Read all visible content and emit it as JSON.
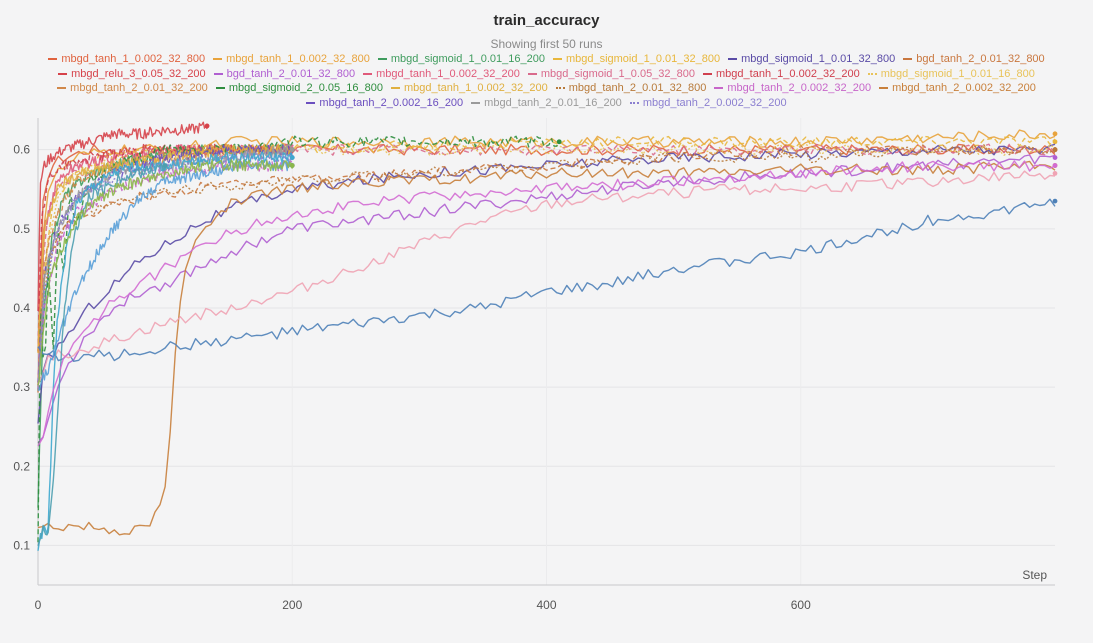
{
  "chart_data": {
    "type": "line",
    "title": "train_accuracy",
    "subtitle": "Showing first 50 runs",
    "xlabel": "Step",
    "ylabel": "",
    "xlim": [
      0,
      800
    ],
    "ylim": [
      0.05,
      0.64
    ],
    "x_ticks": [
      0,
      200,
      400,
      600
    ],
    "y_ticks": [
      0.1,
      0.2,
      0.3,
      0.4,
      0.5,
      0.6
    ],
    "grid": true,
    "legend_position": "top",
    "series": [
      {
        "name": "mbgd_tanh_1_0.002_32_800",
        "color": "#e0633f",
        "dash": "solid",
        "x": [
          0,
          2,
          6,
          10,
          20,
          40,
          80,
          120,
          200,
          300,
          400,
          500,
          600,
          700,
          800
        ],
        "y": [
          0.34,
          0.5,
          0.56,
          0.58,
          0.59,
          0.6,
          0.6,
          0.6,
          0.6,
          0.6,
          0.6,
          0.6,
          0.6,
          0.6,
          0.6
        ]
      },
      {
        "name": "mbgd_tanh_1_0.002_32_800",
        "color": "#e8a33c",
        "dash": "solid",
        "x": [
          0,
          3,
          8,
          15,
          30,
          60,
          100,
          150,
          200,
          300,
          400,
          500,
          600,
          700,
          800
        ],
        "y": [
          0.3,
          0.48,
          0.55,
          0.57,
          0.59,
          0.6,
          0.6,
          0.61,
          0.61,
          0.61,
          0.61,
          0.61,
          0.61,
          0.615,
          0.62
        ]
      },
      {
        "name": "mbgd_sigmoid_1_0.01_16_200",
        "color": "#3f9c5e",
        "dash": "solid",
        "x": [
          0,
          4,
          10,
          20,
          40,
          80,
          120,
          160,
          200
        ],
        "y": [
          0.15,
          0.38,
          0.48,
          0.54,
          0.57,
          0.59,
          0.6,
          0.6,
          0.6
        ]
      },
      {
        "name": "mbgd_sigmoid_1_0.01_32_800",
        "color": "#e8b73c",
        "dash": "dashed",
        "x": [
          0,
          5,
          12,
          25,
          50,
          100,
          200,
          300,
          400,
          500,
          600,
          700,
          800
        ],
        "y": [
          0.3,
          0.45,
          0.53,
          0.57,
          0.59,
          0.6,
          0.6,
          0.605,
          0.61,
          0.61,
          0.61,
          0.61,
          0.61
        ]
      },
      {
        "name": "mbgd_sigmoid_1_0.01_32_800",
        "color": "#5a4ba6",
        "dash": "solid",
        "x": [
          0,
          5,
          10,
          20,
          40,
          60,
          80,
          100,
          130,
          160,
          200,
          300,
          400,
          500,
          600,
          700,
          800
        ],
        "y": [
          0.25,
          0.33,
          0.34,
          0.36,
          0.4,
          0.43,
          0.46,
          0.48,
          0.51,
          0.53,
          0.55,
          0.57,
          0.58,
          0.59,
          0.595,
          0.6,
          0.6
        ]
      },
      {
        "name": "bgd_tanh_2_0.01_32_800",
        "color": "#c9773f",
        "dash": "dashed",
        "x": [
          0,
          5,
          20,
          40,
          80,
          120,
          160,
          200,
          300,
          400,
          500,
          600,
          700,
          800
        ],
        "y": [
          0.3,
          0.46,
          0.5,
          0.52,
          0.54,
          0.55,
          0.56,
          0.56,
          0.57,
          0.58,
          0.59,
          0.6,
          0.6,
          0.6
        ]
      },
      {
        "name": "mbgd_relu_3_0.05_32_200",
        "color": "#d6424a",
        "dash": "solid",
        "x": [
          0,
          2,
          5,
          10,
          20,
          40,
          60,
          80,
          100,
          120,
          133
        ],
        "y": [
          0.4,
          0.56,
          0.58,
          0.59,
          0.6,
          0.61,
          0.62,
          0.62,
          0.625,
          0.625,
          0.63
        ]
      },
      {
        "name": "bgd_tanh_2_0.01_32_800",
        "color": "#b05fd1",
        "dash": "solid",
        "x": [
          0,
          5,
          10,
          20,
          40,
          60,
          80,
          100,
          150,
          200,
          300,
          400,
          500,
          600,
          700,
          800
        ],
        "y": [
          0.23,
          0.24,
          0.27,
          0.32,
          0.37,
          0.4,
          0.42,
          0.43,
          0.47,
          0.5,
          0.52,
          0.54,
          0.56,
          0.57,
          0.58,
          0.59
        ]
      },
      {
        "name": "mbgd_tanh_1_0.002_32_200",
        "color": "#e05a7a",
        "dash": "solid",
        "x": [
          0,
          5,
          15,
          30,
          60,
          100,
          150,
          200
        ],
        "y": [
          0.3,
          0.5,
          0.56,
          0.58,
          0.59,
          0.6,
          0.6,
          0.6
        ]
      },
      {
        "name": "mbgd_sigmoid_1_0.05_32_800",
        "color": "#d96a8c",
        "dash": "dashed",
        "x": [
          0,
          5,
          15,
          30,
          60,
          100,
          200,
          300,
          400,
          500,
          600,
          700,
          800
        ],
        "y": [
          0.3,
          0.5,
          0.55,
          0.57,
          0.58,
          0.59,
          0.6,
          0.6,
          0.6,
          0.6,
          0.6,
          0.6,
          0.6
        ]
      },
      {
        "name": "mbgd_tanh_1_0.002_32_200",
        "color": "#d0404e",
        "dash": "dashed",
        "x": [
          0,
          3,
          10,
          20,
          40,
          80,
          120,
          160,
          200
        ],
        "y": [
          0.35,
          0.52,
          0.57,
          0.58,
          0.59,
          0.6,
          0.6,
          0.6,
          0.6
        ]
      },
      {
        "name": "mbgd_sigmoid_1_0.01_16_800",
        "color": "#e8c35a",
        "dash": "dotted",
        "x": [
          0,
          5,
          15,
          30,
          60,
          120,
          200,
          300,
          400,
          500,
          600,
          700,
          800
        ],
        "y": [
          0.3,
          0.46,
          0.54,
          0.57,
          0.59,
          0.6,
          0.6,
          0.6,
          0.6,
          0.6,
          0.6,
          0.6,
          0.6
        ]
      },
      {
        "name": "mbgd_tanh_2_0.01_32_200",
        "color": "#d1884a",
        "dash": "dashed",
        "x": [
          0,
          5,
          15,
          30,
          60,
          100,
          150,
          200
        ],
        "y": [
          0.3,
          0.46,
          0.52,
          0.56,
          0.58,
          0.59,
          0.6,
          0.6
        ]
      },
      {
        "name": "mbgd_sigmoid_2_0.05_16_800",
        "color": "#2f8e3f",
        "dash": "dashed",
        "x": [
          0,
          2,
          5,
          8,
          12,
          16,
          20,
          25,
          30,
          40,
          60,
          100,
          150,
          200,
          300,
          400,
          410
        ],
        "y": [
          0.1,
          0.4,
          0.3,
          0.45,
          0.35,
          0.5,
          0.44,
          0.55,
          0.5,
          0.56,
          0.58,
          0.6,
          0.6,
          0.61,
          0.61,
          0.61,
          0.61
        ]
      },
      {
        "name": "mbgd_tanh_1_0.002_32_200",
        "color": "#e0b040",
        "dash": "solid",
        "x": [
          0,
          5,
          15,
          30,
          60,
          100,
          150,
          200
        ],
        "y": [
          0.35,
          0.5,
          0.55,
          0.57,
          0.58,
          0.59,
          0.6,
          0.6
        ]
      },
      {
        "name": "mbgd_tanh_2_0.01_32_800",
        "color": "#b87a3a",
        "dash": "dotted",
        "x": [
          0,
          5,
          20,
          40,
          80,
          120,
          200,
          300,
          400,
          500,
          600,
          700,
          800
        ],
        "y": [
          0.3,
          0.44,
          0.5,
          0.52,
          0.54,
          0.55,
          0.56,
          0.57,
          0.58,
          0.59,
          0.59,
          0.6,
          0.6
        ]
      },
      {
        "name": "mbgd_tanh_2_0.002_32_200",
        "color": "#c766c9",
        "dash": "dashed",
        "x": [
          0,
          5,
          15,
          30,
          60,
          100,
          150,
          200
        ],
        "y": [
          0.3,
          0.4,
          0.48,
          0.52,
          0.55,
          0.57,
          0.58,
          0.58
        ]
      },
      {
        "name": "mbgd_tanh_2_0.002_32_200",
        "color": "#c8803c",
        "dash": "solid",
        "x": [
          0,
          5,
          10,
          20,
          40,
          60,
          70,
          80,
          90,
          100,
          103,
          106,
          110,
          115,
          120,
          130,
          140,
          150,
          170,
          200,
          250,
          300,
          400,
          500,
          600,
          700,
          800
        ],
        "y": [
          0.12,
          0.125,
          0.125,
          0.125,
          0.125,
          0.12,
          0.12,
          0.12,
          0.13,
          0.17,
          0.22,
          0.3,
          0.38,
          0.44,
          0.47,
          0.5,
          0.52,
          0.53,
          0.54,
          0.55,
          0.56,
          0.56,
          0.57,
          0.57,
          0.575,
          0.575,
          0.58
        ]
      },
      {
        "name": "mbgd_tanh_2_0.002_16_200",
        "color": "#6b4fbf",
        "dash": "dashed",
        "x": [
          0,
          5,
          15,
          30,
          60,
          100,
          150,
          200
        ],
        "y": [
          0.3,
          0.44,
          0.5,
          0.54,
          0.57,
          0.59,
          0.6,
          0.6
        ]
      },
      {
        "name": "mbgd_tanh_2_0.01_16_200",
        "color": "#9a9a9a",
        "dash": "solid",
        "x": [
          0,
          5,
          15,
          30,
          60,
          100,
          150,
          200
        ],
        "y": [
          0.3,
          0.44,
          0.5,
          0.54,
          0.57,
          0.58,
          0.59,
          0.6
        ]
      },
      {
        "name": "mbgd_tanh_2_0.002_32_200",
        "color": "#8b7fd0",
        "dash": "dotted",
        "x": [
          0,
          5,
          15,
          30,
          60,
          100,
          150,
          200
        ],
        "y": [
          0.3,
          0.42,
          0.5,
          0.54,
          0.56,
          0.58,
          0.59,
          0.59
        ]
      },
      {
        "name": "",
        "color": "#4e81b8",
        "dash": "solid",
        "x": [
          0,
          5,
          10,
          20,
          30,
          40,
          60,
          80,
          100,
          150,
          200,
          250,
          300,
          350,
          400,
          450,
          500,
          550,
          600,
          650,
          700,
          750,
          800
        ],
        "y": [
          0.35,
          0.34,
          0.34,
          0.34,
          0.335,
          0.34,
          0.34,
          0.345,
          0.35,
          0.36,
          0.37,
          0.38,
          0.39,
          0.4,
          0.42,
          0.43,
          0.45,
          0.46,
          0.47,
          0.49,
          0.51,
          0.52,
          0.535
        ]
      },
      {
        "name": "",
        "color": "#f0a3b4",
        "dash": "solid",
        "x": [
          0,
          5,
          10,
          20,
          40,
          60,
          80,
          100,
          150,
          200,
          250,
          300,
          350,
          400,
          450,
          500,
          550,
          600,
          650,
          700,
          750,
          800
        ],
        "y": [
          0.3,
          0.33,
          0.34,
          0.34,
          0.35,
          0.36,
          0.37,
          0.38,
          0.4,
          0.42,
          0.45,
          0.48,
          0.51,
          0.53,
          0.54,
          0.545,
          0.55,
          0.55,
          0.555,
          0.56,
          0.565,
          0.57
        ]
      },
      {
        "name": "",
        "color": "#3ea8cf",
        "dash": "solid",
        "x": [
          0,
          5,
          8,
          10,
          12,
          15,
          20,
          25,
          30,
          40,
          50,
          60,
          80,
          100,
          150,
          200
        ],
        "y": [
          0.1,
          0.12,
          0.12,
          0.2,
          0.3,
          0.38,
          0.45,
          0.5,
          0.53,
          0.55,
          0.56,
          0.57,
          0.58,
          0.58,
          0.59,
          0.59
        ]
      },
      {
        "name": "",
        "color": "#5aa0d8",
        "dash": "solid",
        "x": [
          0,
          10,
          20,
          30,
          40,
          50,
          60,
          70,
          80,
          100,
          130,
          160,
          200
        ],
        "y": [
          0.3,
          0.33,
          0.38,
          0.42,
          0.45,
          0.48,
          0.5,
          0.52,
          0.54,
          0.56,
          0.57,
          0.58,
          0.58
        ]
      },
      {
        "name": "",
        "color": "#4d9fb0",
        "dash": "solid",
        "x": [
          0,
          4,
          8,
          12,
          16,
          20,
          25,
          30,
          40,
          60,
          80,
          100
        ],
        "y": [
          0.1,
          0.12,
          0.12,
          0.18,
          0.28,
          0.38,
          0.46,
          0.5,
          0.54,
          0.56,
          0.57,
          0.58
        ]
      },
      {
        "name": "",
        "color": "#8cb84a",
        "dash": "solid",
        "x": [
          0,
          5,
          10,
          20,
          30,
          40,
          60,
          80,
          100,
          130,
          160,
          200
        ],
        "y": [
          0.3,
          0.38,
          0.44,
          0.48,
          0.51,
          0.53,
          0.55,
          0.56,
          0.57,
          0.58,
          0.58,
          0.58
        ]
      },
      {
        "name": "",
        "color": "#d36bd3",
        "dash": "solid",
        "x": [
          0,
          5,
          10,
          20,
          40,
          60,
          80,
          100,
          130,
          160,
          200,
          300,
          400,
          500,
          600,
          700,
          800
        ],
        "y": [
          0.22,
          0.24,
          0.28,
          0.33,
          0.38,
          0.41,
          0.43,
          0.45,
          0.48,
          0.5,
          0.52,
          0.54,
          0.55,
          0.56,
          0.57,
          0.58,
          0.58
        ]
      }
    ]
  }
}
